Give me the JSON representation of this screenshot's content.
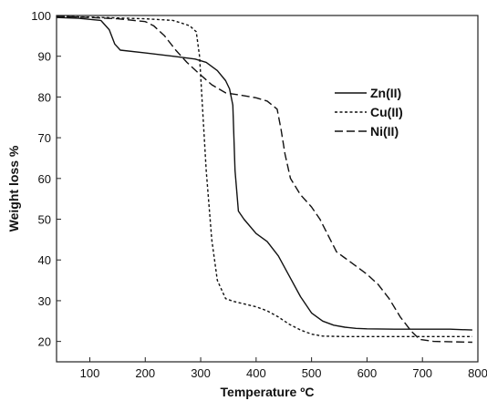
{
  "chart_data": {
    "type": "line",
    "title": "",
    "xlabel": "Temperature ºC",
    "ylabel": "Weight loss %",
    "xlim": [
      40,
      800
    ],
    "ylim": [
      15,
      100
    ],
    "xticks": [
      100,
      200,
      300,
      400,
      500,
      600,
      700,
      800
    ],
    "yticks": [
      20,
      30,
      40,
      50,
      60,
      70,
      80,
      90,
      100
    ],
    "grid": false,
    "legend_position": "right",
    "series": [
      {
        "name": "Zn(II)",
        "style": "solid",
        "color": "#111111",
        "x": [
          40,
          80,
          120,
          135,
          145,
          155,
          200,
          250,
          290,
          310,
          330,
          345,
          352,
          358,
          362,
          368,
          378,
          400,
          420,
          440,
          460,
          480,
          500,
          520,
          540,
          560,
          580,
          600,
          650,
          700,
          750,
          790
        ],
        "y": [
          99.5,
          99.3,
          98.8,
          96.5,
          93,
          91.5,
          90.8,
          90,
          89.3,
          88.5,
          86.5,
          84,
          82,
          78,
          62,
          52,
          50,
          46.5,
          44.5,
          41,
          36,
          31,
          27,
          25,
          24,
          23.5,
          23.2,
          23.1,
          23,
          23,
          23,
          22.8
        ]
      },
      {
        "name": "Cu(II)",
        "style": "dotted",
        "color": "#111111",
        "x": [
          40,
          100,
          150,
          200,
          250,
          280,
          292,
          298,
          303,
          310,
          320,
          330,
          345,
          360,
          400,
          420,
          440,
          460,
          480,
          500,
          520,
          560,
          600,
          700,
          790
        ],
        "y": [
          99.8,
          99.6,
          99.4,
          99.2,
          98.8,
          97.5,
          96,
          90,
          78,
          62,
          45,
          35,
          30.5,
          29.8,
          28.5,
          27.5,
          26,
          24.2,
          22.8,
          21.8,
          21.3,
          21.2,
          21.2,
          21.2,
          21.2
        ]
      },
      {
        "name": "Ni(II)",
        "style": "dashed",
        "color": "#111111",
        "x": [
          40,
          100,
          150,
          200,
          215,
          235,
          255,
          275,
          295,
          320,
          345,
          370,
          400,
          420,
          438,
          445,
          452,
          462,
          480,
          500,
          515,
          530,
          545,
          560,
          580,
          600,
          620,
          640,
          660,
          680,
          695,
          720,
          790
        ],
        "y": [
          99.8,
          99.5,
          99.2,
          98.5,
          97.5,
          95,
          91.5,
          88.5,
          86,
          83,
          81,
          80.5,
          79.8,
          79,
          77,
          72,
          66,
          60,
          56,
          53,
          50,
          46,
          42,
          40.5,
          38.5,
          36.5,
          34,
          30.5,
          26,
          22.5,
          20.5,
          20,
          19.8
        ]
      }
    ]
  }
}
